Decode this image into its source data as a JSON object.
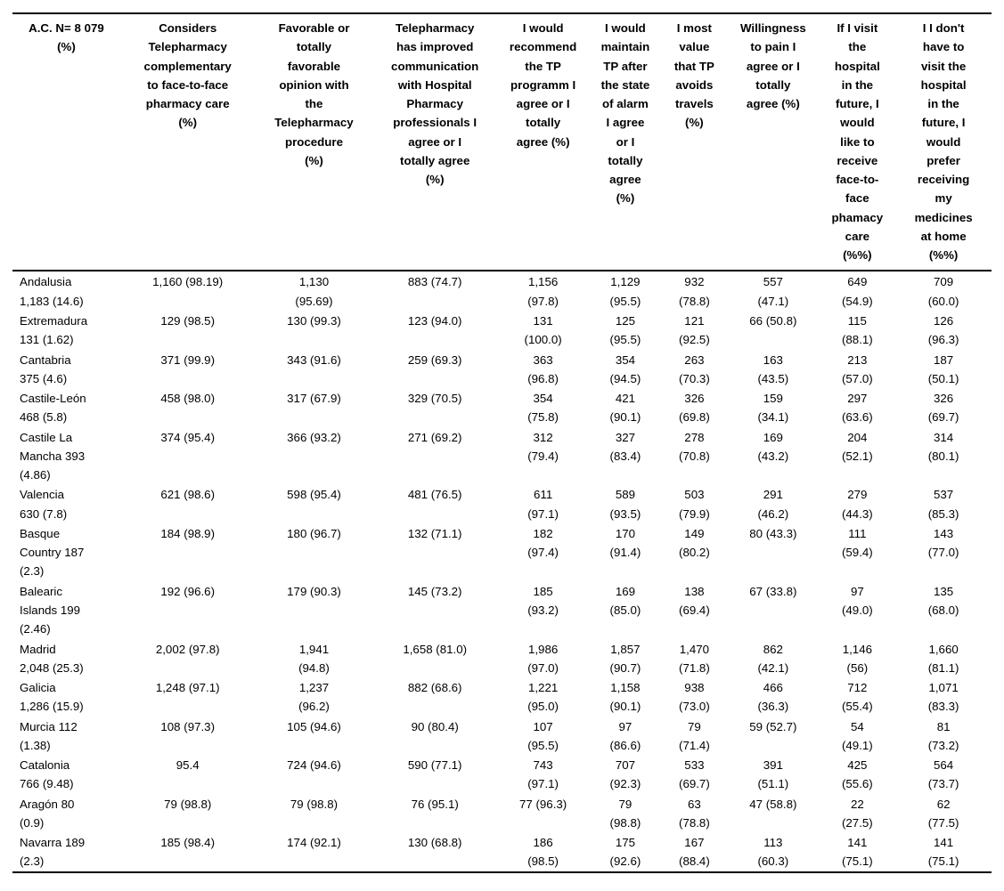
{
  "table": {
    "columns": [
      "A.C. N= 8 079\n(%)",
      "Considers\nTelepharmacy\ncomplementary\nto face-to-face\npharmacy care\n(%)",
      "Favorable or\ntotally\nfavorable\nopinion with\nthe\nTelepharmacy\nprocedure\n(%)",
      "Telepharmacy\nhas improved\ncommunication\nwith Hospital\nPharmacy\nprofessionals I\nagree or I\ntotally agree\n(%)",
      "I would\nrecommend\nthe TP\nprogramm I\nagree or I\ntotally\nagree (%)",
      "I would\nmaintain\nTP after\nthe state\nof alarm\nI agree\nor I\ntotally\nagree\n(%)",
      "I most\nvalue\nthat TP\navoids\ntravels\n(%)",
      "Willingness\nto pain I\nagree or I\ntotally\nagree (%)",
      "If I visit\nthe\nhospital\nin the\nfuture, I\nwould\nlike to\nreceive\nface-to-\nface\nphamacy\ncare\n(%%)",
      "I I don't\nhave to\nvisit the\nhospital\nin the\nfuture, I\nwould\nprefer\nreceiving\nmy\nmedicines\nat home\n(%%)"
    ],
    "rows": [
      {
        "region": "Andalusia\n1,183 (14.6)",
        "cells": [
          "1,160 (98.19)",
          "1,130\n(95.69)",
          "883 (74.7)",
          "1,156\n(97.8)",
          "1,129\n(95.5)",
          "932\n(78.8)",
          "557\n(47.1)",
          "649\n(54.9)",
          "709\n(60.0)"
        ]
      },
      {
        "region": "Extremadura\n131 (1.62)",
        "cells": [
          "129 (98.5)",
          "130 (99.3)",
          "123 (94.0)",
          "131\n(100.0)",
          "125\n(95.5)",
          "121\n(92.5)",
          "66 (50.8)",
          "115\n(88.1)",
          "126\n(96.3)"
        ]
      },
      {
        "region": "Cantabria\n375 (4.6)",
        "cells": [
          "371 (99.9)",
          "343 (91.6)",
          "259 (69.3)",
          "363\n(96.8)",
          "354\n(94.5)",
          "263\n(70.3)",
          "163\n(43.5)",
          "213\n(57.0)",
          "187\n(50.1)"
        ]
      },
      {
        "region": "Castile-León\n468 (5.8)",
        "cells": [
          "458 (98.0)",
          "317 (67.9)",
          "329 (70.5)",
          "354\n(75.8)",
          "421\n(90.1)",
          "326\n(69.8)",
          "159\n(34.1)",
          "297\n(63.6)",
          "326\n(69.7)"
        ]
      },
      {
        "region": "Castile La\nMancha 393\n(4.86)",
        "cells": [
          "374 (95.4)",
          "366 (93.2)",
          "271 (69.2)",
          "312\n(79.4)",
          "327\n(83.4)",
          "278\n(70.8)",
          "169\n(43.2)",
          "204\n(52.1)",
          "314\n(80.1)"
        ]
      },
      {
        "region": "Valencia\n630 (7.8)",
        "cells": [
          "621 (98.6)",
          "598 (95.4)",
          "481 (76.5)",
          "611\n(97.1)",
          "589\n(93.5)",
          "503\n(79.9)",
          "291\n(46.2)",
          "279\n(44.3)",
          "537\n(85.3)"
        ]
      },
      {
        "region": "Basque\nCountry 187\n(2.3)",
        "cells": [
          "184 (98.9)",
          "180 (96.7)",
          "132 (71.1)",
          "182\n(97.4)",
          "170\n(91.4)",
          "149\n(80.2)",
          "80 (43.3)",
          "111\n(59.4)",
          "143\n(77.0)"
        ]
      },
      {
        "region": "Balearic\nIslands 199\n(2.46)",
        "cells": [
          "192 (96.6)",
          "179 (90.3)",
          "145 (73.2)",
          "185\n(93.2)",
          "169\n(85.0)",
          "138\n(69.4)",
          "67 (33.8)",
          "97\n(49.0)",
          "135\n(68.0)"
        ]
      },
      {
        "region": "Madrid\n2,048 (25.3)",
        "cells": [
          "2,002 (97.8)",
          "1,941\n(94.8)",
          "1,658 (81.0)",
          "1,986\n(97.0)",
          "1,857\n(90.7)",
          "1,470\n(71.8)",
          "862\n(42.1)",
          "1,146\n(56)",
          "1,660\n(81.1)"
        ]
      },
      {
        "region": "Galicia\n1,286 (15.9)",
        "cells": [
          "1,248 (97.1)",
          "1,237\n(96.2)",
          "882 (68.6)",
          "1,221\n(95.0)",
          "1,158\n(90.1)",
          "938\n(73.0)",
          "466\n(36.3)",
          "712\n(55.4)",
          "1,071\n(83.3)"
        ]
      },
      {
        "region": "Murcia 112\n(1.38)",
        "cells": [
          "108 (97.3)",
          "105 (94.6)",
          "90 (80.4)",
          "107\n(95.5)",
          "97\n(86.6)",
          "79\n(71.4)",
          "59 (52.7)",
          "54\n(49.1)",
          "81\n(73.2)"
        ]
      },
      {
        "region": "Catalonia\n766 (9.48)",
        "cells": [
          "95.4",
          "724 (94.6)",
          "590 (77.1)",
          "743\n(97.1)",
          "707\n(92.3)",
          "533\n(69.7)",
          "391\n(51.1)",
          "425\n(55.6)",
          "564\n(73.7)"
        ]
      },
      {
        "region": "Aragón 80\n(0.9)",
        "cells": [
          "79 (98.8)",
          "79 (98.8)",
          "76 (95.1)",
          "77 (96.3)",
          "79\n(98.8)",
          "63\n(78.8)",
          "47 (58.8)",
          "22\n(27.5)",
          "62\n(77.5)"
        ]
      },
      {
        "region": "Navarra 189\n(2.3)",
        "cells": [
          "185 (98.4)",
          "174 (92.1)",
          "130 (68.8)",
          "186\n(98.5)",
          "175\n(92.6)",
          "167\n(88.4)",
          "113\n(60.3)",
          "141\n(75.1)",
          "141\n(75.1)"
        ]
      }
    ]
  }
}
